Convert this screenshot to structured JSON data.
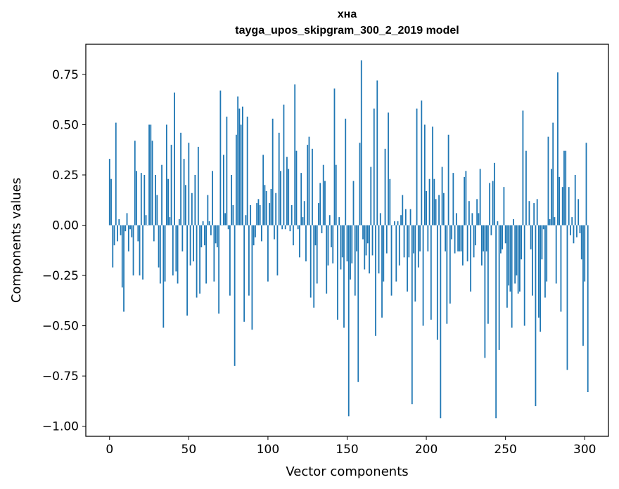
{
  "chart_data": {
    "type": "bar",
    "title": "хна",
    "subtitle": "tayga_upos_skipgram_300_2_2019 model",
    "xlabel": "Vector components",
    "ylabel": "Components values",
    "xlim": [
      -15,
      315
    ],
    "ylim": [
      -1.05,
      0.9
    ],
    "xticks": [
      0,
      50,
      100,
      150,
      200,
      250,
      300
    ],
    "xtick_labels": [
      "0",
      "50",
      "100",
      "150",
      "200",
      "250",
      "300"
    ],
    "yticks": [
      -1.0,
      -0.75,
      -0.5,
      -0.25,
      0.0,
      0.25,
      0.5,
      0.75
    ],
    "ytick_labels": [
      "−1.00",
      "−0.75",
      "−0.50",
      "−0.25",
      "0.00",
      "0.25",
      "0.50",
      "0.75"
    ],
    "grid": false,
    "color": "#1f77b4",
    "values": [
      0.33,
      0.23,
      -0.21,
      -0.1,
      0.51,
      -0.08,
      0.03,
      -0.05,
      -0.31,
      -0.43,
      -0.03,
      0.06,
      -0.13,
      -0.02,
      -0.06,
      -0.25,
      0.42,
      0.27,
      -0.08,
      -0.25,
      0.26,
      -0.27,
      0.25,
      0.05,
      0.0,
      0.5,
      0.5,
      0.42,
      -0.08,
      0.25,
      0.15,
      -0.21,
      -0.29,
      0.3,
      -0.51,
      -0.28,
      0.5,
      0.23,
      0.04,
      0.4,
      -0.25,
      0.66,
      -0.23,
      -0.29,
      0.03,
      0.46,
      -0.13,
      0.33,
      0.2,
      -0.45,
      0.41,
      -0.2,
      0.16,
      -0.18,
      0.25,
      -0.36,
      0.39,
      -0.34,
      -0.11,
      0.02,
      -0.1,
      -0.29,
      0.15,
      0.02,
      -0.05,
      0.27,
      -0.28,
      -0.09,
      -0.11,
      -0.44,
      0.67,
      0.0,
      0.35,
      0.06,
      0.54,
      -0.02,
      -0.35,
      0.25,
      0.1,
      -0.7,
      0.45,
      0.64,
      0.58,
      0.5,
      0.59,
      -0.48,
      0.05,
      0.54,
      -0.35,
      0.1,
      -0.52,
      -0.1,
      -0.06,
      0.11,
      0.13,
      0.1,
      -0.08,
      0.35,
      0.2,
      0.17,
      -0.28,
      0.11,
      0.18,
      0.53,
      -0.07,
      0.16,
      -0.25,
      0.46,
      0.27,
      -0.02,
      0.6,
      -0.02,
      0.34,
      0.28,
      -0.03,
      0.1,
      -0.1,
      0.7,
      0.37,
      -0.02,
      -0.16,
      0.26,
      0.04,
      0.12,
      -0.18,
      0.4,
      0.44,
      -0.36,
      0.38,
      -0.41,
      -0.1,
      -0.29,
      0.11,
      0.21,
      -0.04,
      0.3,
      0.22,
      -0.34,
      -0.2,
      0.05,
      -0.11,
      -0.19,
      0.68,
      0.3,
      -0.47,
      0.04,
      -0.22,
      -0.16,
      -0.51,
      0.53,
      -0.18,
      -0.95,
      -0.27,
      -0.19,
      0.22,
      -0.35,
      -0.13,
      -0.78,
      0.41,
      0.82,
      -0.07,
      -0.22,
      -0.15,
      -0.09,
      -0.24,
      0.29,
      -0.15,
      0.58,
      -0.55,
      0.72,
      -0.24,
      0.06,
      -0.46,
      -0.28,
      0.38,
      -0.14,
      0.56,
      0.23,
      -0.35,
      0.0,
      0.02,
      -0.28,
      0.02,
      -0.2,
      0.05,
      0.15,
      -0.16,
      0.08,
      -0.33,
      -0.16,
      0.08,
      -0.89,
      -0.14,
      -0.38,
      0.58,
      -0.21,
      -0.13,
      0.62,
      -0.5,
      0.5,
      0.17,
      -0.13,
      0.23,
      -0.47,
      0.49,
      0.23,
      0.13,
      -0.57,
      0.15,
      -0.96,
      0.29,
      0.16,
      -0.13,
      -0.49,
      0.45,
      -0.39,
      -0.07,
      0.26,
      -0.14,
      0.06,
      -0.13,
      -0.13,
      -0.13,
      -0.2,
      0.24,
      0.27,
      -0.18,
      0.12,
      -0.33,
      0.06,
      -0.16,
      -0.1,
      0.13,
      0.06,
      0.28,
      -0.2,
      -0.13,
      -0.66,
      -0.13,
      -0.49,
      0.21,
      -0.05,
      0.22,
      0.31,
      -0.96,
      0.02,
      -0.62,
      -0.14,
      -0.12,
      0.19,
      -0.09,
      -0.41,
      -0.3,
      -0.33,
      -0.51,
      0.03,
      -0.29,
      -0.25,
      -0.34,
      -0.33,
      -0.17,
      0.57,
      -0.5,
      0.37,
      0.0,
      0.12,
      -0.12,
      -0.35,
      0.11,
      -0.9,
      0.13,
      -0.46,
      -0.53,
      -0.17,
      -0.02,
      -0.36,
      -0.28,
      0.44,
      0.03,
      0.28,
      0.51,
      0.04,
      -0.29,
      0.76,
      0.24,
      -0.43,
      0.19,
      0.37,
      0.37,
      -0.72,
      0.19,
      -0.05,
      0.04,
      -0.09,
      0.25,
      -0.06,
      0.13,
      -0.04,
      -0.17,
      -0.6,
      -0.28,
      0.41,
      -0.83
    ]
  }
}
